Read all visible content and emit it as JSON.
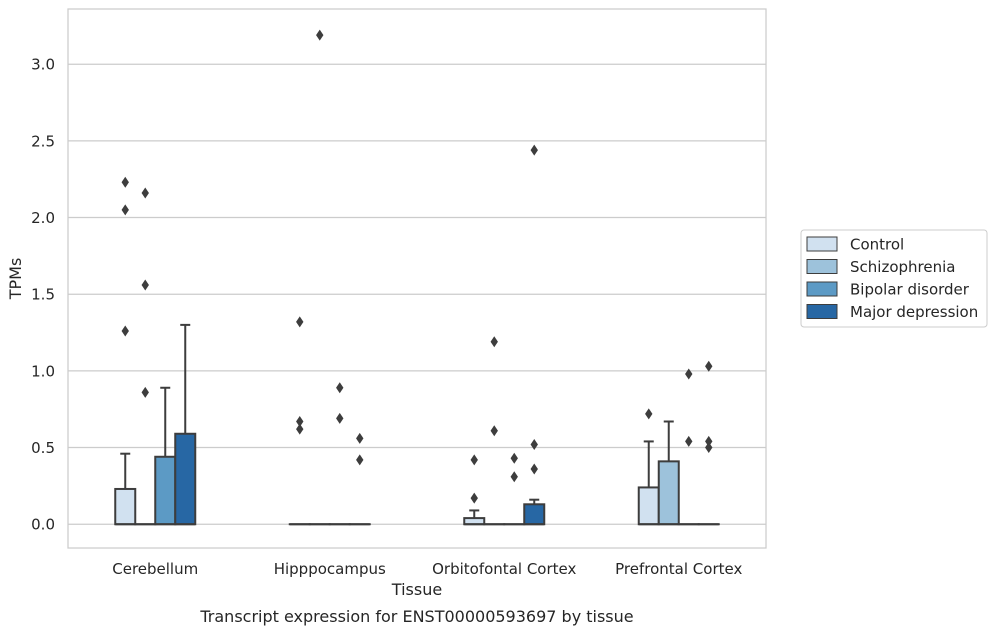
{
  "chart_data": {
    "type": "box",
    "title": "",
    "caption": "Transcript expression for ENST00000593697 by tissue",
    "xlabel": "Tissue",
    "ylabel": "TPMs",
    "ylim": [
      -0.155,
      3.36
    ],
    "yticks": [
      0.0,
      0.5,
      1.0,
      1.5,
      2.0,
      2.5,
      3.0
    ],
    "ytick_labels": [
      "0.0",
      "0.5",
      "1.0",
      "1.5",
      "2.0",
      "2.5",
      "3.0"
    ],
    "grid": "horizontal",
    "legend_position": "right",
    "categories": [
      "Cerebellum",
      "Hipppocampus",
      "Orbitofontal Cortex",
      "Prefrontal Cortex"
    ],
    "series": [
      {
        "name": "Control",
        "color": "#d1e1f0",
        "boxes": [
          {
            "q1": 0.0,
            "median": 0.0,
            "q3": 0.23,
            "whisker_low": 0.0,
            "whisker_high": 0.46,
            "outliers": [
              1.26,
              2.05,
              2.23
            ]
          },
          {
            "q1": 0.0,
            "median": 0.0,
            "q3": 0.0,
            "whisker_low": 0.0,
            "whisker_high": 0.0,
            "outliers": [
              0.62,
              0.67,
              1.32
            ]
          },
          {
            "q1": 0.0,
            "median": 0.0,
            "q3": 0.04,
            "whisker_low": 0.0,
            "whisker_high": 0.09,
            "outliers": [
              0.17,
              0.42
            ]
          },
          {
            "q1": 0.0,
            "median": 0.0,
            "q3": 0.24,
            "whisker_low": 0.0,
            "whisker_high": 0.54,
            "outliers": [
              0.72
            ]
          }
        ]
      },
      {
        "name": "Schizophrenia",
        "color": "#9dc2db",
        "boxes": [
          {
            "q1": 0.0,
            "median": 0.0,
            "q3": 0.0,
            "whisker_low": 0.0,
            "whisker_high": 0.0,
            "outliers": [
              0.86,
              1.56,
              2.16
            ]
          },
          {
            "q1": 0.0,
            "median": 0.0,
            "q3": 0.0,
            "whisker_low": 0.0,
            "whisker_high": 0.0,
            "outliers": [
              3.19
            ]
          },
          {
            "q1": 0.0,
            "median": 0.0,
            "q3": 0.0,
            "whisker_low": 0.0,
            "whisker_high": 0.0,
            "outliers": [
              0.61,
              1.19
            ]
          },
          {
            "q1": 0.0,
            "median": 0.0,
            "q3": 0.41,
            "whisker_low": 0.0,
            "whisker_high": 0.67,
            "outliers": []
          }
        ]
      },
      {
        "name": "Bipolar disorder",
        "color": "#5c9ac5",
        "boxes": [
          {
            "q1": 0.0,
            "median": 0.0,
            "q3": 0.44,
            "whisker_low": 0.0,
            "whisker_high": 0.89,
            "outliers": []
          },
          {
            "q1": 0.0,
            "median": 0.0,
            "q3": 0.0,
            "whisker_low": 0.0,
            "whisker_high": 0.0,
            "outliers": [
              0.69,
              0.89
            ]
          },
          {
            "q1": 0.0,
            "median": 0.0,
            "q3": 0.0,
            "whisker_low": 0.0,
            "whisker_high": 0.0,
            "outliers": [
              0.31,
              0.43
            ]
          },
          {
            "q1": 0.0,
            "median": 0.0,
            "q3": 0.0,
            "whisker_low": 0.0,
            "whisker_high": 0.0,
            "outliers": [
              0.54,
              0.98
            ]
          }
        ]
      },
      {
        "name": "Major depression",
        "color": "#2767a4",
        "boxes": [
          {
            "q1": 0.0,
            "median": 0.0,
            "q3": 0.59,
            "whisker_low": 0.0,
            "whisker_high": 1.3,
            "outliers": []
          },
          {
            "q1": 0.0,
            "median": 0.0,
            "q3": 0.0,
            "whisker_low": 0.0,
            "whisker_high": 0.0,
            "outliers": [
              0.42,
              0.56
            ]
          },
          {
            "q1": 0.0,
            "median": 0.0,
            "q3": 0.13,
            "whisker_low": 0.0,
            "whisker_high": 0.16,
            "outliers": [
              0.36,
              0.52,
              2.44
            ]
          },
          {
            "q1": 0.0,
            "median": 0.0,
            "q3": 0.0,
            "whisker_low": 0.0,
            "whisker_high": 0.0,
            "outliers": [
              0.5,
              0.54,
              1.03
            ]
          }
        ]
      }
    ]
  }
}
